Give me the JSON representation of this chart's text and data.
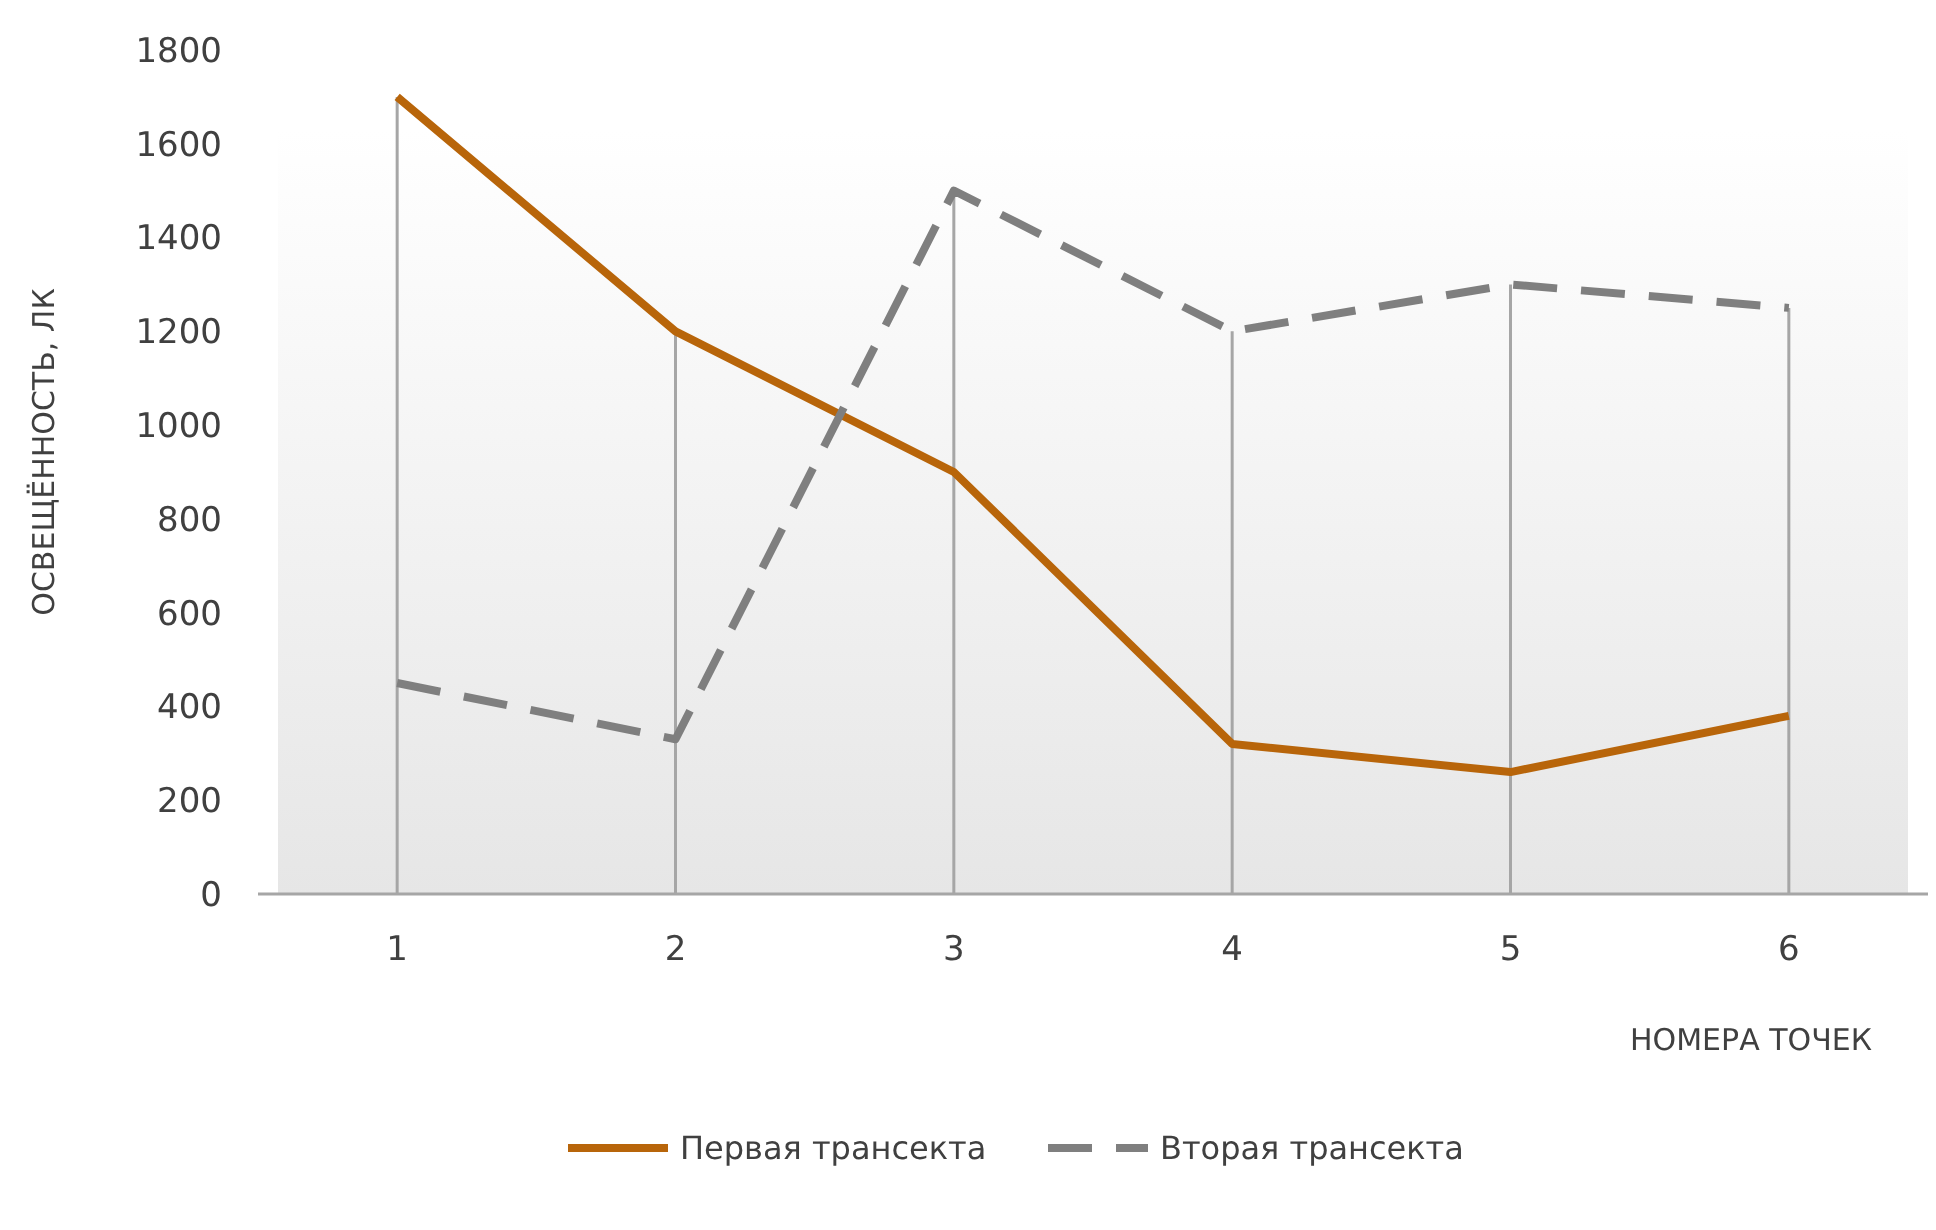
{
  "chart_data": {
    "type": "line",
    "xlabel": "НОМЕРА ТОЧЕК",
    "ylabel": "ОСВЕЩЁННОСТЬ, ЛК",
    "categories": [
      "1",
      "2",
      "3",
      "4",
      "5",
      "6"
    ],
    "ylim": [
      0,
      1800
    ],
    "yticks": [
      0,
      200,
      400,
      600,
      800,
      1000,
      1200,
      1400,
      1600,
      1800
    ],
    "grid": false,
    "ref_lines": [
      {
        "axis": "x",
        "value": "1",
        "color": "#a6a6a6"
      },
      {
        "axis": "x",
        "value": "2",
        "color": "#a6a6a6"
      },
      {
        "axis": "x",
        "value": "3",
        "color": "#a6a6a6"
      },
      {
        "axis": "x",
        "value": "4",
        "color": "#a6a6a6"
      },
      {
        "axis": "x",
        "value": "5",
        "color": "#a6a6a6"
      },
      {
        "axis": "x",
        "value": "6",
        "color": "#a6a6a6"
      }
    ],
    "legend": "bottom",
    "marker": "none",
    "series": [
      {
        "name": "Первая трансекта",
        "color": "#b8650a",
        "line_style": "solid",
        "values": [
          1700,
          1200,
          900,
          320,
          260,
          380
        ]
      },
      {
        "name": "Вторая трансекта",
        "color": "#7f7f7f",
        "line_style": "dashed",
        "values": [
          450,
          330,
          1500,
          1200,
          1300,
          1250
        ]
      }
    ]
  }
}
